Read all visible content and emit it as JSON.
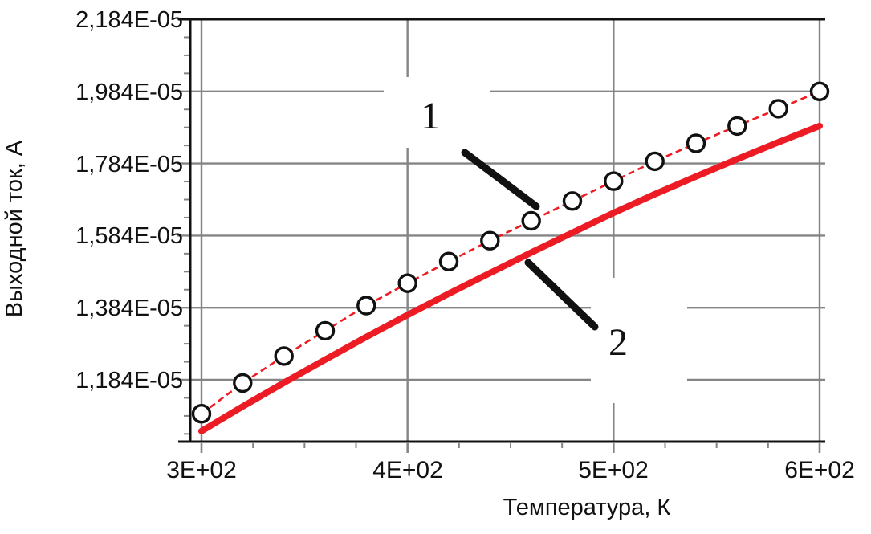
{
  "chart_data": {
    "type": "line",
    "title": "",
    "xlabel": "Температура, К",
    "ylabel": "Выходной ток, А",
    "x_ticks": [
      "3E+02",
      "4E+02",
      "5E+02",
      "6E+02"
    ],
    "x_tick_values": [
      300,
      400,
      500,
      600
    ],
    "y_ticks": [
      "2,184E-05",
      "1,984E-05",
      "1,784E-05",
      "1,584E-05",
      "1,384E-05",
      "1,184E-05"
    ],
    "y_tick_values": [
      2.184e-05,
      1.984e-05,
      1.784e-05,
      1.584e-05,
      1.384e-05,
      1.184e-05
    ],
    "x_minor_step": 25,
    "y_minor_step": 5e-07,
    "grid": "on",
    "axis_ranges": {
      "x": [
        300,
        600
      ],
      "y": [
        1.013e-05,
        2.184e-05
      ]
    },
    "x": [
      300,
      320,
      340,
      360,
      380,
      400,
      420,
      440,
      460,
      480,
      500,
      520,
      540,
      560,
      580,
      600
    ],
    "series": [
      {
        "name": "1",
        "line_style": "thin-dashed",
        "marker": "open-circle",
        "color": "#ED1C24",
        "values": [
          1.09e-05,
          1.175e-05,
          1.25e-05,
          1.32e-05,
          1.39e-05,
          1.452e-05,
          1.512e-05,
          1.57e-05,
          1.625e-05,
          1.68e-05,
          1.735e-05,
          1.79e-05,
          1.84e-05,
          1.888e-05,
          1.936e-05,
          1.984e-05
        ]
      },
      {
        "name": "2",
        "line_style": "thick-solid",
        "marker": "none",
        "color": "#ED1C24",
        "values": [
          1.042e-05,
          1.11e-05,
          1.176e-05,
          1.24e-05,
          1.303e-05,
          1.364e-05,
          1.423e-05,
          1.48e-05,
          1.537e-05,
          1.592e-05,
          1.647e-05,
          1.699e-05,
          1.748e-05,
          1.796e-05,
          1.843e-05,
          1.888e-05
        ]
      }
    ],
    "annotations": [
      {
        "label": "1",
        "points_to": "series 1"
      },
      {
        "label": "2",
        "points_to": "series 2"
      }
    ],
    "colors": {
      "curve": "#ED1C24",
      "gridline": "#858585",
      "axis": "#111111",
      "text": "#111111",
      "annotation": "#111111"
    }
  }
}
